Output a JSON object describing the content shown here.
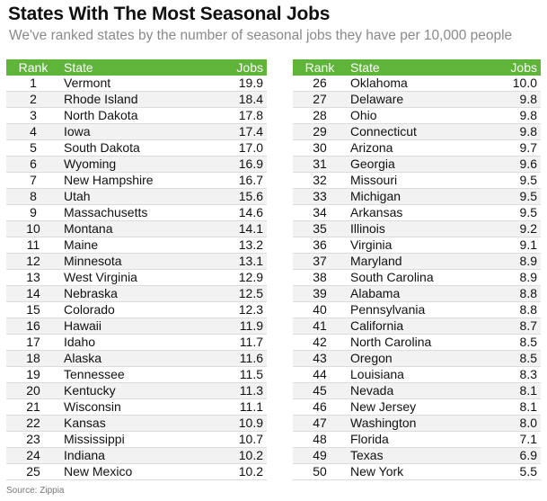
{
  "title": "States With The Most Seasonal Jobs",
  "subtitle": "We've ranked states by the number of seasonal jobs they have per 10,000 people",
  "source": "Source: Zippia",
  "chart_data": {
    "type": "table",
    "columns": [
      "Rank",
      "State",
      "Jobs"
    ],
    "rows": [
      [
        1,
        "Vermont",
        "19.9"
      ],
      [
        2,
        "Rhode Island",
        "18.4"
      ],
      [
        3,
        "North Dakota",
        "17.8"
      ],
      [
        4,
        "Iowa",
        "17.4"
      ],
      [
        5,
        "South Dakota",
        "17.0"
      ],
      [
        6,
        "Wyoming",
        "16.9"
      ],
      [
        7,
        "New Hampshire",
        "16.7"
      ],
      [
        8,
        "Utah",
        "15.6"
      ],
      [
        9,
        "Massachusetts",
        "14.6"
      ],
      [
        10,
        "Montana",
        "14.1"
      ],
      [
        11,
        "Maine",
        "13.2"
      ],
      [
        12,
        "Minnesota",
        "13.1"
      ],
      [
        13,
        "West Virginia",
        "12.9"
      ],
      [
        14,
        "Nebraska",
        "12.5"
      ],
      [
        15,
        "Colorado",
        "12.3"
      ],
      [
        16,
        "Hawaii",
        "11.9"
      ],
      [
        17,
        "Idaho",
        "11.7"
      ],
      [
        18,
        "Alaska",
        "11.6"
      ],
      [
        19,
        "Tennessee",
        "11.5"
      ],
      [
        20,
        "Kentucky",
        "11.3"
      ],
      [
        21,
        "Wisconsin",
        "11.1"
      ],
      [
        22,
        "Kansas",
        "10.9"
      ],
      [
        23,
        "Mississippi",
        "10.7"
      ],
      [
        24,
        "Indiana",
        "10.2"
      ],
      [
        25,
        "New Mexico",
        "10.2"
      ],
      [
        26,
        "Oklahoma",
        "10.0"
      ],
      [
        27,
        "Delaware",
        "9.8"
      ],
      [
        28,
        "Ohio",
        "9.8"
      ],
      [
        29,
        "Connecticut",
        "9.8"
      ],
      [
        30,
        "Arizona",
        "9.7"
      ],
      [
        31,
        "Georgia",
        "9.6"
      ],
      [
        32,
        "Missouri",
        "9.5"
      ],
      [
        33,
        "Michigan",
        "9.5"
      ],
      [
        34,
        "Arkansas",
        "9.5"
      ],
      [
        35,
        "Illinois",
        "9.2"
      ],
      [
        36,
        "Virginia",
        "9.1"
      ],
      [
        37,
        "Maryland",
        "8.9"
      ],
      [
        38,
        "South Carolina",
        "8.9"
      ],
      [
        39,
        "Alabama",
        "8.8"
      ],
      [
        40,
        "Pennsylvania",
        "8.8"
      ],
      [
        41,
        "California",
        "8.7"
      ],
      [
        42,
        "North Carolina",
        "8.5"
      ],
      [
        43,
        "Oregon",
        "8.5"
      ],
      [
        44,
        "Louisiana",
        "8.3"
      ],
      [
        45,
        "Nevada",
        "8.1"
      ],
      [
        46,
        "New Jersey",
        "8.1"
      ],
      [
        47,
        "Washington",
        "8.0"
      ],
      [
        48,
        "Florida",
        "7.1"
      ],
      [
        49,
        "Texas",
        "6.9"
      ],
      [
        50,
        "New York",
        "5.5"
      ]
    ]
  },
  "colors": {
    "header_bg": "#5fb53a",
    "header_text": "#ffffff",
    "stripe": "#f2f2f2",
    "subtitle": "#8a8a8a"
  }
}
